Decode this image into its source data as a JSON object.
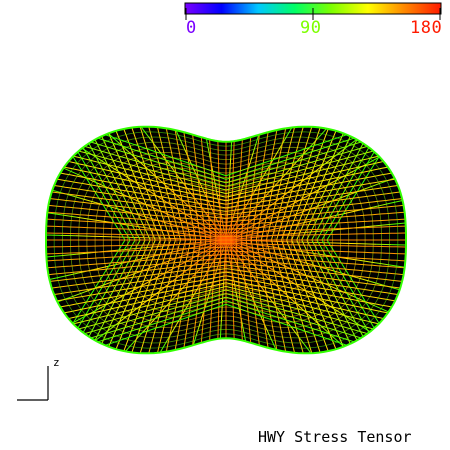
{
  "title": "HWY Stress Tensor",
  "colorbar": {
    "min_label": "0",
    "mid_label": "90",
    "max_label": "180",
    "min_color": "#7a00ff",
    "mid_color": "#7dff00",
    "max_color": "#ff1a00",
    "stops": [
      "#7a00ff",
      "#0000ff",
      "#00c8ff",
      "#00ff66",
      "#7dff00",
      "#ffff00",
      "#ff8800",
      "#ff1a00"
    ]
  },
  "axis": {
    "label": "z",
    "color": "#000000"
  },
  "surface": {
    "background": "#000000",
    "center_color": "#ff4d00",
    "edge_color": "#ffee00",
    "rim_color": "#33ff00",
    "rings": 22,
    "meridians": 36
  }
}
